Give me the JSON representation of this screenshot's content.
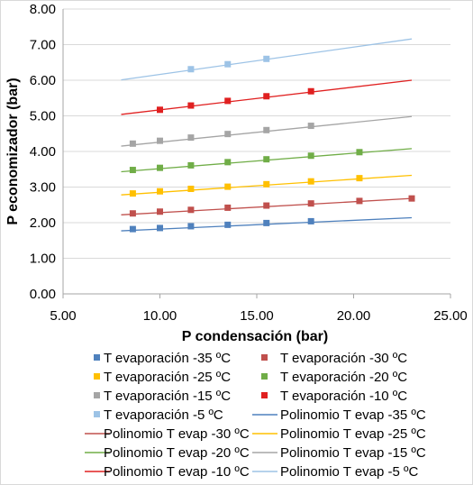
{
  "chart_data": {
    "type": "scatter",
    "xlabel": "P condensación (bar)",
    "ylabel": "P economizador (bar)",
    "xlim": [
      5,
      25
    ],
    "ylim": [
      0,
      8
    ],
    "x_ticks": [
      "5.00",
      "10.00",
      "15.00",
      "20.00",
      "25.00"
    ],
    "y_ticks": [
      "0.00",
      "1.00",
      "2.00",
      "3.00",
      "4.00",
      "5.00",
      "6.00",
      "7.00",
      "8.00"
    ],
    "grid": "horizontal",
    "legend_position": "bottom",
    "series": [
      {
        "name": "T evaporación -35 ºC",
        "color": "#4f81bd",
        "x": [
          8.6,
          10.0,
          11.6,
          13.5,
          15.5,
          17.8
        ],
        "y": [
          1.82,
          1.85,
          1.9,
          1.94,
          1.99,
          2.04
        ]
      },
      {
        "name": "T evaporación -30 ºC",
        "color": "#c0504d",
        "x": [
          8.6,
          10.0,
          11.6,
          13.5,
          15.5,
          17.8,
          20.3,
          23.0
        ],
        "y": [
          2.26,
          2.31,
          2.36,
          2.42,
          2.48,
          2.54,
          2.61,
          2.68
        ]
      },
      {
        "name": "T evaporación -25 ºC",
        "color": "#ffc000",
        "x": [
          8.6,
          10.0,
          11.6,
          13.5,
          15.5,
          17.8,
          20.3
        ],
        "y": [
          2.82,
          2.88,
          2.95,
          3.01,
          3.08,
          3.16,
          3.25
        ]
      },
      {
        "name": "T evaporación -20 ºC",
        "color": "#70ad47",
        "x": [
          8.6,
          10.0,
          11.6,
          13.5,
          15.5,
          17.8,
          20.3
        ],
        "y": [
          3.48,
          3.54,
          3.61,
          3.7,
          3.78,
          3.88,
          3.98
        ]
      },
      {
        "name": "T evaporación -15 ºC",
        "color": "#a5a5a5",
        "x": [
          8.6,
          10.0,
          11.6,
          13.5,
          15.5,
          17.8
        ],
        "y": [
          4.22,
          4.3,
          4.39,
          4.49,
          4.6,
          4.72
        ]
      },
      {
        "name": "T evaporación -10 ºC",
        "color": "#e02020",
        "x": [
          10.0,
          11.6,
          13.5,
          15.5,
          17.8
        ],
        "y": [
          5.17,
          5.29,
          5.42,
          5.55,
          5.69
        ]
      },
      {
        "name": "T evaporación -5 ºC",
        "color": "#9dc3e6",
        "x": [
          11.6,
          13.5,
          15.5
        ],
        "y": [
          6.31,
          6.45,
          6.6
        ]
      }
    ],
    "trendlines": [
      {
        "name": "Polinomio T evap -35 ºC",
        "color": "#4f81bd",
        "x": [
          8.0,
          23.0
        ],
        "y": [
          1.77,
          2.14
        ]
      },
      {
        "name": "Polinomio T evap -30 ºC",
        "color": "#c0504d",
        "x": [
          8.0,
          23.0
        ],
        "y": [
          2.22,
          2.68
        ]
      },
      {
        "name": "Polinomio T evap -25 ºC",
        "color": "#ffc000",
        "x": [
          8.0,
          23.0
        ],
        "y": [
          2.78,
          3.33
        ]
      },
      {
        "name": "Polinomio T evap -20 ºC",
        "color": "#70ad47",
        "x": [
          8.0,
          23.0
        ],
        "y": [
          3.43,
          4.08
        ]
      },
      {
        "name": "Polinomio T evap -15 ºC",
        "color": "#a5a5a5",
        "x": [
          8.0,
          23.0
        ],
        "y": [
          4.15,
          4.98
        ]
      },
      {
        "name": "Polinomio T evap -10 ºC",
        "color": "#e02020",
        "x": [
          8.0,
          23.0
        ],
        "y": [
          5.04,
          6.0
        ]
      },
      {
        "name": "Polinomio T evap -5 ºC",
        "color": "#9dc3e6",
        "x": [
          8.0,
          23.0
        ],
        "y": [
          6.01,
          7.16
        ]
      }
    ]
  }
}
